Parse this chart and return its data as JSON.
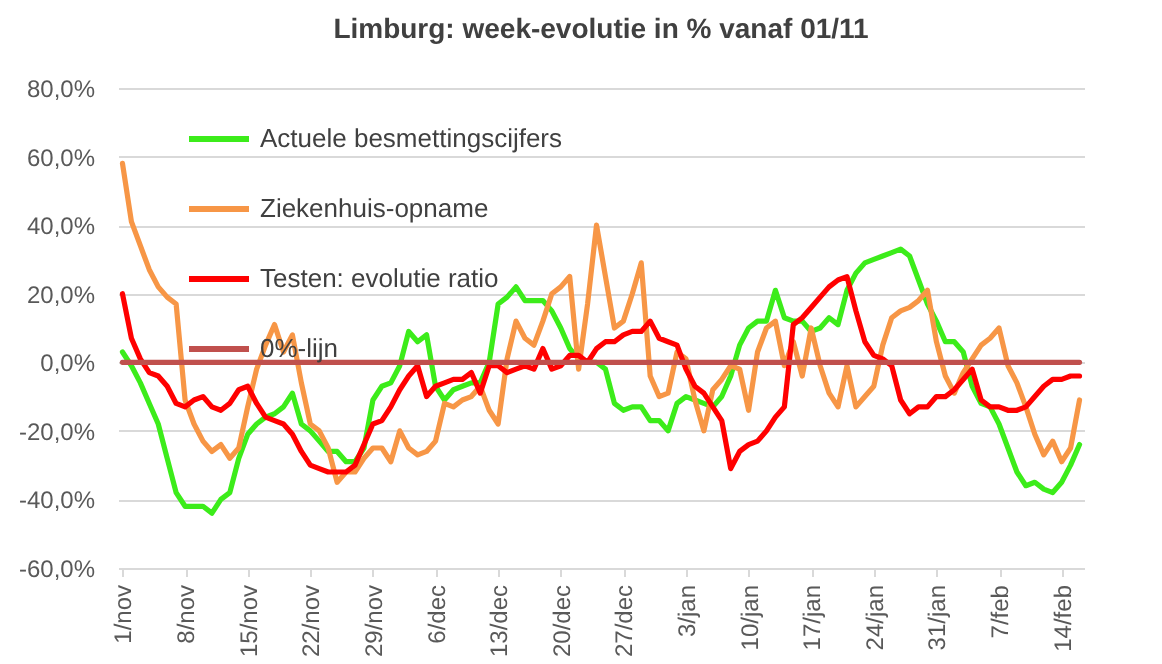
{
  "chart_data": {
    "type": "line",
    "title": "Limburg: week-evolutie in %  vanaf 01/11",
    "categories": [
      "1/nov",
      null,
      null,
      null,
      null,
      null,
      null,
      "8/nov",
      null,
      null,
      null,
      null,
      null,
      null,
      "15/nov",
      null,
      null,
      null,
      null,
      null,
      null,
      "22/nov",
      null,
      null,
      null,
      null,
      null,
      null,
      "29/nov",
      null,
      null,
      null,
      null,
      null,
      null,
      "6/dec",
      null,
      null,
      null,
      null,
      null,
      null,
      "13/dec",
      null,
      null,
      null,
      null,
      null,
      null,
      "20/dec",
      null,
      null,
      null,
      null,
      null,
      null,
      "27/dec",
      null,
      null,
      null,
      null,
      null,
      null,
      "3/jan",
      null,
      null,
      null,
      null,
      null,
      null,
      "10/jan",
      null,
      null,
      null,
      null,
      null,
      null,
      "17/jan",
      null,
      null,
      null,
      null,
      null,
      null,
      "24/jan",
      null,
      null,
      null,
      null,
      null,
      null,
      "31/jan",
      null,
      null,
      null,
      null,
      null,
      null,
      "7/feb",
      null,
      null,
      null,
      null,
      null,
      null,
      "14/feb",
      null,
      null
    ],
    "series": [
      {
        "name": "Actuele besmettingscijfers",
        "color": "#3cec1a",
        "values": [
          3,
          -1,
          -6,
          -12,
          -18,
          -28,
          -38,
          -42,
          -42,
          -42,
          -44,
          -40,
          -38,
          -28,
          -21,
          -18,
          -16,
          -15,
          -13,
          -9,
          -18,
          -20,
          -23,
          -26,
          -26,
          -29,
          -29,
          -25,
          -11,
          -7,
          -6,
          -1,
          9,
          6,
          8,
          -7,
          -11,
          -8,
          -7,
          -6,
          -6,
          0,
          17,
          19,
          22,
          18,
          18,
          18,
          15,
          10,
          4,
          1,
          0,
          0,
          -2,
          -12,
          -14,
          -13,
          -13,
          -17,
          -17,
          -20,
          -12,
          -10,
          -11,
          -12,
          -13,
          -10,
          -4,
          5,
          10,
          12,
          12,
          21,
          13,
          12,
          12,
          9,
          10,
          13,
          11,
          21,
          26,
          29,
          30,
          31,
          32,
          33,
          31,
          24,
          17,
          12,
          6,
          6,
          3,
          -7,
          -12,
          -13,
          -18,
          -25,
          -32,
          -36,
          -35,
          -37,
          -38,
          -35,
          -30,
          -24
        ]
      },
      {
        "name": "Ziekenhuis-opname",
        "color": "#f79646",
        "values": [
          58,
          41,
          34,
          27,
          22,
          19,
          17,
          -11,
          -18,
          -23,
          -26,
          -24,
          -28,
          -25,
          -13,
          -2,
          5,
          11,
          3,
          8,
          -6,
          -18,
          -20,
          -25,
          -35,
          -32,
          -32,
          -28,
          -25,
          -25,
          -29,
          -20,
          -25,
          -27,
          -26,
          -23,
          -12,
          -13,
          -11,
          -10,
          -7,
          -14,
          -18,
          1,
          12,
          7,
          5,
          12,
          20,
          22,
          25,
          -2,
          17,
          40,
          25,
          10,
          12,
          20,
          29,
          -4,
          -10,
          -9,
          3,
          1,
          -11,
          -20,
          -8,
          -5,
          -1,
          -2,
          -14,
          3,
          10,
          12,
          -1,
          6,
          -4,
          10,
          -1,
          -9,
          -13,
          -1,
          -13,
          -10,
          -7,
          5,
          13,
          15,
          16,
          18,
          21,
          6,
          -4,
          -9,
          -3,
          1,
          5,
          7,
          10,
          -1,
          -6,
          -13,
          -21,
          -27,
          -23,
          -29,
          -25,
          -11
        ]
      },
      {
        "name": "Testen: evolutie ratio",
        "color": "#ff0000",
        "values": [
          20,
          7,
          1,
          -3,
          -4,
          -7,
          -12,
          -13,
          -11,
          -10,
          -13,
          -14,
          -12,
          -8,
          -7,
          -12,
          -16,
          -17,
          -18,
          -21,
          -26,
          -30,
          -31,
          -32,
          -32,
          -32,
          -30,
          -24,
          -18,
          -17,
          -13,
          -8,
          -4,
          -1,
          -10,
          -7,
          -6,
          -5,
          -5,
          -3,
          -9,
          -1,
          -1,
          -3,
          -2,
          -1,
          -2,
          4,
          -2,
          -1,
          2,
          2,
          0,
          4,
          6,
          6,
          8,
          9,
          9,
          12,
          7,
          6,
          5,
          -2,
          -7,
          -9,
          -13,
          -17,
          -31,
          -26,
          -24,
          -23,
          -20,
          -16,
          -13,
          11,
          13,
          16,
          19,
          22,
          24,
          25,
          15,
          6,
          2,
          1,
          -1,
          -11,
          -15,
          -13,
          -13,
          -10,
          -10,
          -8,
          -5,
          -2,
          -11,
          -13,
          -13,
          -14,
          -14,
          -13,
          -10,
          -7,
          -5,
          -5,
          -4,
          -4
        ]
      },
      {
        "name": "0%-lijn",
        "color": "#c0504d",
        "values": [
          0,
          0,
          0,
          0,
          0,
          0,
          0,
          0,
          0,
          0,
          0,
          0,
          0,
          0,
          0,
          0,
          0,
          0,
          0,
          0,
          0,
          0,
          0,
          0,
          0,
          0,
          0,
          0,
          0,
          0,
          0,
          0,
          0,
          0,
          0,
          0,
          0,
          0,
          0,
          0,
          0,
          0,
          0,
          0,
          0,
          0,
          0,
          0,
          0,
          0,
          0,
          0,
          0,
          0,
          0,
          0,
          0,
          0,
          0,
          0,
          0,
          0,
          0,
          0,
          0,
          0,
          0,
          0,
          0,
          0,
          0,
          0,
          0,
          0,
          0,
          0,
          0,
          0,
          0,
          0,
          0,
          0,
          0,
          0,
          0,
          0,
          0,
          0,
          0,
          0,
          0,
          0,
          0,
          0,
          0,
          0,
          0,
          0,
          0,
          0,
          0,
          0,
          0,
          0,
          0,
          0,
          0,
          0
        ]
      }
    ],
    "ylim": [
      -60,
      80
    ],
    "yticks": [
      {
        "value": -60,
        "label": "-60,0%"
      },
      {
        "value": -40,
        "label": "-40,0%"
      },
      {
        "value": -20,
        "label": "-20,0%"
      },
      {
        "value": 0,
        "label": "0,0%"
      },
      {
        "value": 20,
        "label": "20,0%"
      },
      {
        "value": 40,
        "label": "40,0%"
      },
      {
        "value": 60,
        "label": "60,0%"
      },
      {
        "value": 80,
        "label": "80,0%"
      }
    ],
    "grid": "y",
    "legend": "top left"
  }
}
